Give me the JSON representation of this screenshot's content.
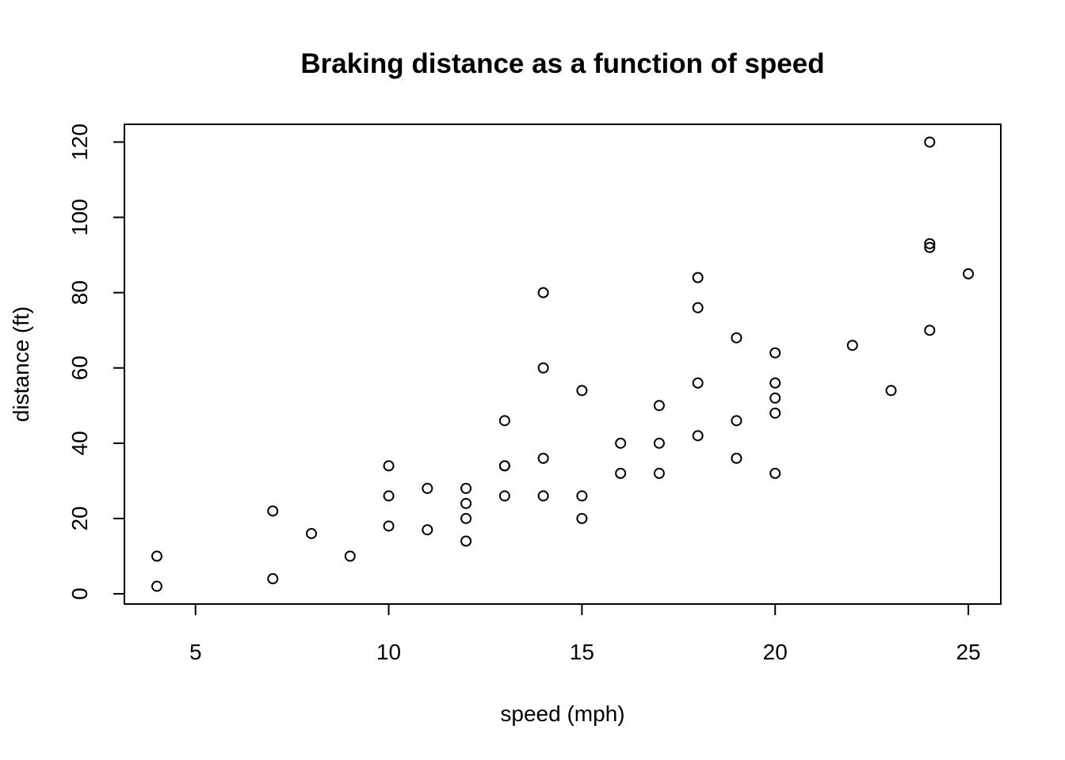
{
  "chart_data": {
    "type": "scatter",
    "title": "Braking distance as a function of speed",
    "xlabel": "speed (mph)",
    "ylabel": "distance (ft)",
    "xlim": [
      3.16,
      25.84
    ],
    "ylim": [
      -2.72,
      124.72
    ],
    "xticks": [
      5,
      10,
      15,
      20,
      25
    ],
    "yticks": [
      0,
      20,
      40,
      60,
      80,
      100,
      120
    ],
    "grid": false,
    "marker": "open-circle",
    "x": [
      4,
      4,
      7,
      7,
      8,
      9,
      10,
      10,
      10,
      11,
      11,
      12,
      12,
      12,
      12,
      13,
      13,
      13,
      13,
      14,
      14,
      14,
      14,
      15,
      15,
      15,
      16,
      16,
      17,
      17,
      17,
      18,
      18,
      18,
      18,
      19,
      19,
      19,
      20,
      20,
      20,
      20,
      20,
      22,
      23,
      24,
      24,
      24,
      24,
      25
    ],
    "y": [
      2,
      10,
      4,
      22,
      16,
      10,
      18,
      26,
      34,
      17,
      28,
      14,
      20,
      24,
      28,
      26,
      34,
      34,
      46,
      26,
      36,
      60,
      80,
      20,
      26,
      54,
      32,
      40,
      32,
      40,
      50,
      42,
      56,
      76,
      84,
      36,
      46,
      68,
      32,
      48,
      52,
      56,
      64,
      66,
      54,
      70,
      92,
      93,
      120,
      85
    ]
  }
}
